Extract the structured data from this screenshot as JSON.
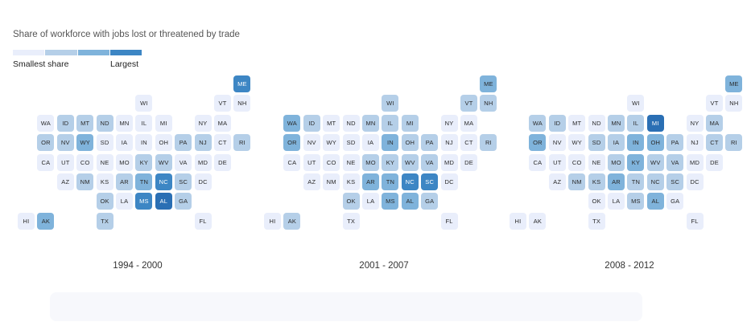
{
  "chart_data": {
    "type": "heatmap",
    "title": "Share of workforce with jobs lost or threatened by trade",
    "legend": {
      "low_label": "Smallest share",
      "high_label": "Largest",
      "levels": 4,
      "colors": [
        "#e9eefb",
        "#b5cfe8",
        "#7fb3db",
        "#3d86c4",
        "#2a6fb4"
      ]
    },
    "grid_layout": {
      "ME": [
        11,
        0
      ],
      "WI": [
        6,
        1
      ],
      "VT": [
        10,
        1
      ],
      "NH": [
        11,
        1
      ],
      "WA": [
        1,
        2
      ],
      "ID": [
        2,
        2
      ],
      "MT": [
        3,
        2
      ],
      "ND": [
        4,
        2
      ],
      "MN": [
        5,
        2
      ],
      "IL": [
        6,
        2
      ],
      "MI": [
        7,
        2
      ],
      "NY": [
        9,
        2
      ],
      "MA": [
        10,
        2
      ],
      "OR": [
        1,
        3
      ],
      "NV": [
        2,
        3
      ],
      "WY": [
        3,
        3
      ],
      "SD": [
        4,
        3
      ],
      "IA": [
        5,
        3
      ],
      "IN": [
        6,
        3
      ],
      "OH": [
        7,
        3
      ],
      "PA": [
        8,
        3
      ],
      "NJ": [
        9,
        3
      ],
      "CT": [
        10,
        3
      ],
      "RI": [
        11,
        3
      ],
      "CA": [
        1,
        4
      ],
      "UT": [
        2,
        4
      ],
      "CO": [
        3,
        4
      ],
      "NE": [
        4,
        4
      ],
      "MO": [
        5,
        4
      ],
      "KY": [
        6,
        4
      ],
      "WV": [
        7,
        4
      ],
      "VA": [
        8,
        4
      ],
      "MD": [
        9,
        4
      ],
      "DE": [
        10,
        4
      ],
      "AZ": [
        2,
        5
      ],
      "NM": [
        3,
        5
      ],
      "KS": [
        4,
        5
      ],
      "AR": [
        5,
        5
      ],
      "TN": [
        6,
        5
      ],
      "NC": [
        7,
        5
      ],
      "SC": [
        8,
        5
      ],
      "DC": [
        9,
        5
      ],
      "OK": [
        4,
        6
      ],
      "LA": [
        5,
        6
      ],
      "MS": [
        6,
        6
      ],
      "AL": [
        7,
        6
      ],
      "GA": [
        8,
        6
      ],
      "HI": [
        0,
        7
      ],
      "AK": [
        1,
        7
      ],
      "TX": [
        4,
        7
      ],
      "FL": [
        9,
        7
      ]
    },
    "panels": [
      {
        "label": "1994 - 2000",
        "levels": {
          "ME": 3,
          "WI": 0,
          "VT": 0,
          "NH": 0,
          "WA": 0,
          "ID": 1,
          "MT": 1,
          "ND": 1,
          "MN": 0,
          "IL": 0,
          "MI": 0,
          "NY": 0,
          "MA": 0,
          "OR": 1,
          "NV": 1,
          "WY": 2,
          "SD": 0,
          "IA": 0,
          "IN": 0,
          "OH": 0,
          "PA": 1,
          "NJ": 1,
          "CT": 0,
          "RI": 1,
          "CA": 0,
          "UT": 0,
          "CO": 0,
          "NE": 0,
          "MO": 0,
          "KY": 1,
          "WV": 1,
          "VA": 0,
          "MD": 0,
          "DE": 0,
          "AZ": 0,
          "NM": 1,
          "KS": 0,
          "AR": 1,
          "TN": 2,
          "NC": 3,
          "SC": 1,
          "DC": 0,
          "OK": 1,
          "LA": 0,
          "MS": 3,
          "AL": 4,
          "GA": 1,
          "HI": 0,
          "AK": 2,
          "TX": 1,
          "FL": 0
        }
      },
      {
        "label": "2001 - 2007",
        "levels": {
          "ME": 2,
          "WI": 1,
          "VT": 1,
          "NH": 1,
          "WA": 2,
          "ID": 1,
          "MT": 0,
          "ND": 0,
          "MN": 1,
          "IL": 1,
          "MI": 1,
          "NY": 0,
          "MA": 0,
          "OR": 2,
          "NV": 0,
          "WY": 0,
          "SD": 0,
          "IA": 0,
          "IN": 2,
          "OH": 1,
          "PA": 1,
          "NJ": 0,
          "CT": 0,
          "RI": 1,
          "CA": 0,
          "UT": 0,
          "CO": 0,
          "NE": 0,
          "MO": 1,
          "KY": 1,
          "WV": 1,
          "VA": 1,
          "MD": 0,
          "DE": 0,
          "AZ": 0,
          "NM": 0,
          "KS": 0,
          "AR": 2,
          "TN": 2,
          "NC": 3,
          "SC": 3,
          "DC": 0,
          "OK": 1,
          "LA": 0,
          "MS": 2,
          "AL": 2,
          "GA": 1,
          "HI": 0,
          "AK": 1,
          "TX": 0,
          "FL": 0
        }
      },
      {
        "label": "2008 - 2012",
        "levels": {
          "ME": 2,
          "WI": 0,
          "VT": 0,
          "NH": 0,
          "WA": 1,
          "ID": 1,
          "MT": 0,
          "ND": 0,
          "MN": 1,
          "IL": 1,
          "MI": 4,
          "NY": 0,
          "MA": 1,
          "OR": 2,
          "NV": 0,
          "WY": 0,
          "SD": 1,
          "IA": 1,
          "IN": 2,
          "OH": 2,
          "PA": 1,
          "NJ": 0,
          "CT": 1,
          "RI": 1,
          "CA": 0,
          "UT": 0,
          "CO": 0,
          "NE": 0,
          "MO": 1,
          "KY": 2,
          "WV": 1,
          "VA": 1,
          "MD": 0,
          "DE": 0,
          "AZ": 0,
          "NM": 1,
          "KS": 1,
          "AR": 2,
          "TN": 1,
          "NC": 1,
          "SC": 1,
          "DC": 0,
          "OK": 0,
          "LA": 0,
          "MS": 1,
          "AL": 2,
          "GA": 0,
          "HI": 0,
          "AK": 0,
          "TX": 0,
          "FL": 0
        }
      }
    ]
  }
}
